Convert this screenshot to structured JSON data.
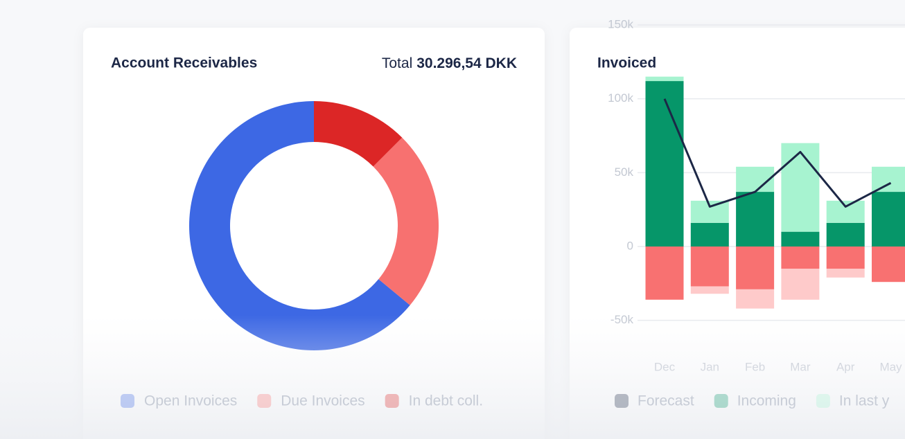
{
  "chart_data": [
    {
      "type": "pie",
      "title": "Account Receivables",
      "total_label": "Total",
      "total": "30.296,54 DKK",
      "categories": [
        "Open Invoices",
        "Due Invoices",
        "In debt coll."
      ],
      "values": [
        64,
        23.5,
        12.5
      ],
      "colors": [
        "#3d68e4",
        "#f77170",
        "#dc2626"
      ],
      "donut": true
    },
    {
      "type": "bar",
      "title": "Invoiced",
      "stacked": true,
      "grid": true,
      "categories": [
        "Dec",
        "Jan",
        "Feb",
        "Mar",
        "Apr",
        "May"
      ],
      "ylim": [
        -75000,
        150000
      ],
      "yticks": [
        {
          "value": 150000,
          "label": "150k"
        },
        {
          "value": 100000,
          "label": "100k"
        },
        {
          "value": 50000,
          "label": "50k"
        },
        {
          "value": 0,
          "label": "0"
        },
        {
          "value": -50000,
          "label": "-50k"
        }
      ],
      "series": [
        {
          "name": "Forecast",
          "type": "line",
          "color": "#1c2746",
          "values": [
            100000,
            27000,
            37000,
            64000,
            27000,
            43000
          ]
        },
        {
          "name": "Incoming",
          "color": "#069669",
          "values": [
            112000,
            16000,
            37000,
            10000,
            16000,
            37000
          ]
        },
        {
          "name": "In last y",
          "color": "#a7f3d0",
          "values": [
            3000,
            15000,
            17000,
            60000,
            15000,
            17000
          ]
        },
        {
          "color": "#f87171",
          "values": [
            -36000,
            -27000,
            -29000,
            -15000,
            -15000,
            -24000
          ]
        },
        {
          "color": "#fecaca",
          "values": [
            0,
            -5000,
            -13000,
            -21000,
            -6000,
            0
          ]
        }
      ]
    }
  ]
}
